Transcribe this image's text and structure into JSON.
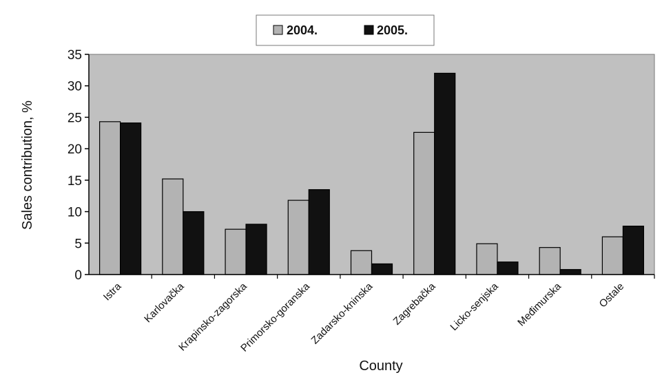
{
  "chart_data": {
    "type": "bar",
    "title": "",
    "xlabel": "County",
    "ylabel": "Sales contribution, %",
    "ylim": [
      0,
      35
    ],
    "yticks": [
      0,
      5,
      10,
      15,
      20,
      25,
      30,
      35
    ],
    "categories": [
      "Istra",
      "Karlovačka",
      "Krapinsko-zagorska",
      "Primorsko-goranska",
      "Zadarsko-kninska",
      "Zagrebačka",
      "Licko-senjska",
      "Međimurska",
      "Ostale"
    ],
    "series": [
      {
        "name": "2004.",
        "color": "#b3b3b3",
        "values": [
          24.3,
          15.2,
          7.2,
          11.8,
          3.8,
          22.6,
          4.9,
          4.3,
          6.0
        ]
      },
      {
        "name": "2005.",
        "color": "#111111",
        "values": [
          24.1,
          10.0,
          8.0,
          13.5,
          1.7,
          32.0,
          2.0,
          0.8,
          7.7
        ]
      }
    ],
    "grid": false,
    "legend": "top",
    "plot_background": "#c0c0c0"
  }
}
